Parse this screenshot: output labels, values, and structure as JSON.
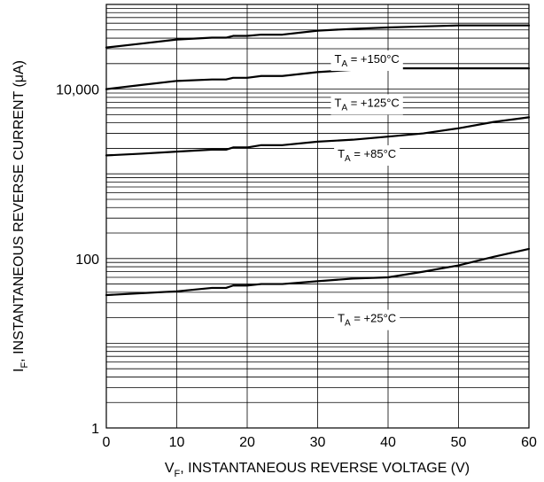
{
  "chart_data": {
    "type": "line",
    "title": "",
    "xlabel": {
      "main": "V",
      "sub": "F",
      "rest": ", INSTANTANEOUS REVERSE VOLTAGE (V)"
    },
    "ylabel": {
      "main": "I",
      "sub": "F",
      "rest": ", INSTANTANEOUS REVERSE CURRENT (μA)"
    },
    "x_scale": "linear",
    "y_scale": "log",
    "xlim": [
      0,
      60
    ],
    "ylim": [
      1,
      100000
    ],
    "x_ticks": [
      0,
      10,
      20,
      30,
      40,
      50,
      60
    ],
    "x_tick_labels": [
      "0",
      "10",
      "20",
      "30",
      "40",
      "50",
      "60"
    ],
    "y_tick_values": [
      1,
      100,
      10000
    ],
    "y_tick_labels": [
      "1",
      "100",
      "10,000"
    ],
    "grid": true,
    "series": [
      {
        "name": {
          "main": "T",
          "sub": "A",
          "rest": " = +150°C"
        },
        "label_at": [
          37,
          23000
        ],
        "x": [
          0,
          5,
          10,
          15,
          17,
          18,
          20,
          22,
          25,
          30,
          35,
          40,
          45,
          50,
          55,
          60
        ],
        "y": [
          31000,
          34500,
          38500,
          40500,
          40500,
          42500,
          42500,
          44000,
          44000,
          49000,
          51500,
          53500,
          55000,
          56500,
          56500,
          56500
        ]
      },
      {
        "name": {
          "main": "T",
          "sub": "A",
          "rest": " = +125°C"
        },
        "label_at": [
          37,
          7000
        ],
        "x": [
          0,
          5,
          10,
          15,
          17,
          18,
          20,
          22,
          25,
          30,
          35,
          40,
          45,
          50,
          55,
          60
        ],
        "y": [
          10000,
          11200,
          12500,
          13000,
          13000,
          13600,
          13600,
          14300,
          14300,
          15900,
          16900,
          17600,
          17600,
          17600,
          17600,
          17600
        ]
      },
      {
        "name": {
          "main": "T",
          "sub": "A",
          "rest": " = +85°C"
        },
        "label_at": [
          37,
          1750
        ],
        "x": [
          0,
          5,
          10,
          15,
          17,
          18,
          20,
          22,
          25,
          30,
          35,
          40,
          45,
          50,
          55,
          60
        ],
        "y": [
          1650,
          1730,
          1830,
          1930,
          1930,
          2050,
          2050,
          2180,
          2180,
          2400,
          2530,
          2750,
          3000,
          3450,
          4100,
          4650
        ]
      },
      {
        "name": {
          "main": "T",
          "sub": "A",
          "rest": " = +25°C"
        },
        "label_at": [
          37,
          20
        ],
        "x": [
          0,
          5,
          10,
          15,
          17,
          18,
          20,
          22,
          25,
          30,
          35,
          40,
          45,
          50,
          55,
          60
        ],
        "y": [
          37,
          39,
          41,
          45,
          45,
          48,
          48,
          50,
          50,
          54,
          58,
          60,
          70,
          83,
          105,
          130
        ]
      }
    ]
  }
}
